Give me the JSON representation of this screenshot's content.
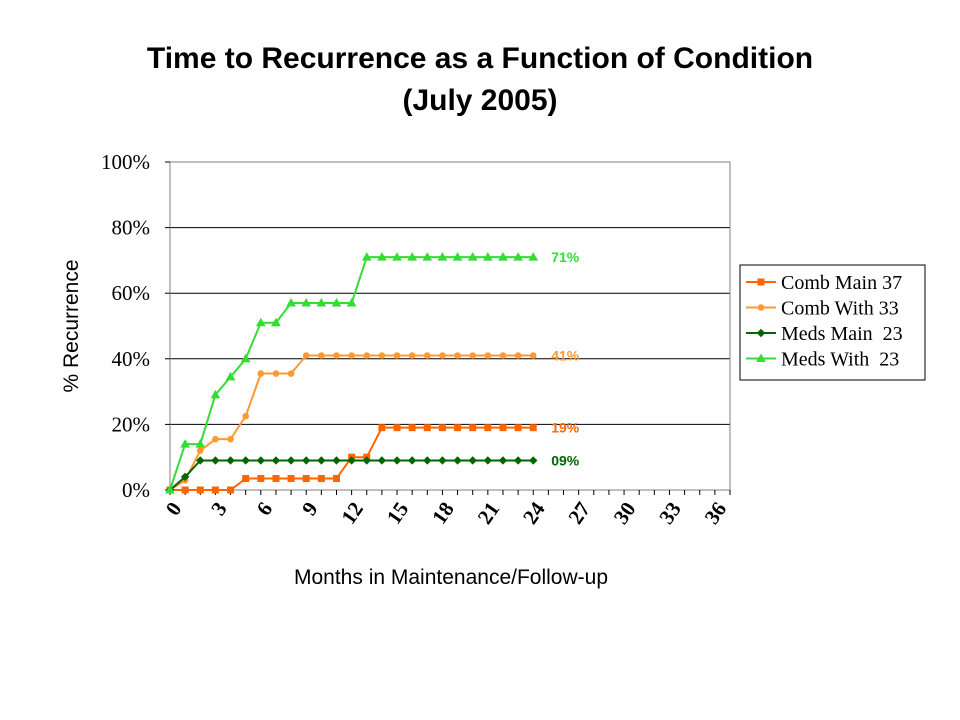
{
  "chart_data": {
    "type": "line",
    "title": "Time to Recurrence as a Function of Condition",
    "subtitle": "(July 2005)",
    "xlabel": "Months in Maintenance/Follow-up",
    "ylabel": "% Recurrence",
    "xlim": [
      0,
      37
    ],
    "ylim": [
      0,
      100
    ],
    "x_ticks": [
      "0",
      "3",
      "6",
      "9",
      "12",
      "15",
      "18",
      "21",
      "24",
      "27",
      "30",
      "33",
      "36"
    ],
    "y_ticks": [
      "0%",
      "20%",
      "40%",
      "60%",
      "80%",
      "100%"
    ],
    "grid": "horizontal",
    "legend_position": "right",
    "x": [
      0,
      1,
      2,
      3,
      4,
      5,
      6,
      7,
      8,
      9,
      10,
      11,
      12,
      13,
      14,
      15,
      16,
      17,
      18,
      19,
      20,
      21,
      22,
      23,
      24
    ],
    "series": [
      {
        "name": "Comb Main 37",
        "color": "#ff6600",
        "marker": "square",
        "end_label": "19%",
        "values": [
          0,
          0,
          0,
          0,
          0,
          3.5,
          3.5,
          3.5,
          3.5,
          3.5,
          3.5,
          3.5,
          10,
          10,
          19,
          19,
          19,
          19,
          19,
          19,
          19,
          19,
          19,
          19,
          19
        ]
      },
      {
        "name": "Comb With 33",
        "color": "#ff9933",
        "marker": "circle",
        "end_label": "41%",
        "values": [
          0,
          3,
          12,
          15.5,
          15.5,
          22.5,
          35.5,
          35.5,
          35.5,
          41,
          41,
          41,
          41,
          41,
          41,
          41,
          41,
          41,
          41,
          41,
          41,
          41,
          41,
          41,
          41
        ]
      },
      {
        "name": "Meds Main  23",
        "color": "#006600",
        "marker": "diamond",
        "end_label": "09%",
        "values": [
          0,
          4,
          9,
          9,
          9,
          9,
          9,
          9,
          9,
          9,
          9,
          9,
          9,
          9,
          9,
          9,
          9,
          9,
          9,
          9,
          9,
          9,
          9,
          9,
          9
        ]
      },
      {
        "name": "Meds With  23",
        "color": "#33dd33",
        "marker": "triangle",
        "end_label": "71%",
        "values": [
          0,
          14,
          14,
          29,
          34.5,
          40,
          51,
          51,
          57,
          57,
          57,
          57,
          57,
          71,
          71,
          71,
          71,
          71,
          71,
          71,
          71,
          71,
          71,
          71,
          71
        ]
      }
    ]
  }
}
